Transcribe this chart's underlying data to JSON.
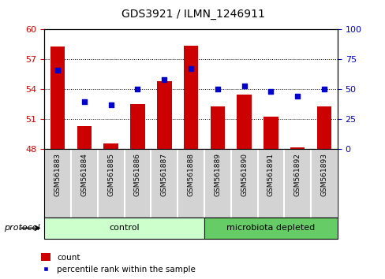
{
  "title": "GDS3921 / ILMN_1246911",
  "samples": [
    "GSM561883",
    "GSM561884",
    "GSM561885",
    "GSM561886",
    "GSM561887",
    "GSM561888",
    "GSM561889",
    "GSM561890",
    "GSM561891",
    "GSM561892",
    "GSM561893"
  ],
  "bar_values": [
    58.3,
    50.3,
    48.6,
    52.5,
    54.8,
    58.35,
    52.3,
    53.5,
    51.3,
    48.15,
    52.3
  ],
  "dot_values": [
    66,
    40,
    37,
    50,
    58,
    67,
    50,
    53,
    48,
    44,
    50
  ],
  "bar_color": "#cc0000",
  "dot_color": "#0000cc",
  "ymin": 48,
  "ymax": 60,
  "yticks": [
    48,
    51,
    54,
    57,
    60
  ],
  "y2min": 0,
  "y2max": 100,
  "y2ticks": [
    0,
    25,
    50,
    75,
    100
  ],
  "n_control": 6,
  "n_micro": 5,
  "group_labels": [
    "control",
    "microbiota depleted"
  ],
  "group_colors": [
    "#ccffcc",
    "#66cc66"
  ],
  "protocol_label": "protocol",
  "legend_bar": "count",
  "legend_dot": "percentile rank within the sample",
  "axis_color_left": "#cc0000",
  "axis_color_right": "#0000cc",
  "bar_width": 0.55,
  "xtick_bg": "#d3d3d3",
  "plot_bg": "#ffffff",
  "grid_dotted_color": "#000000",
  "grid_ticks": [
    51,
    54,
    57
  ]
}
